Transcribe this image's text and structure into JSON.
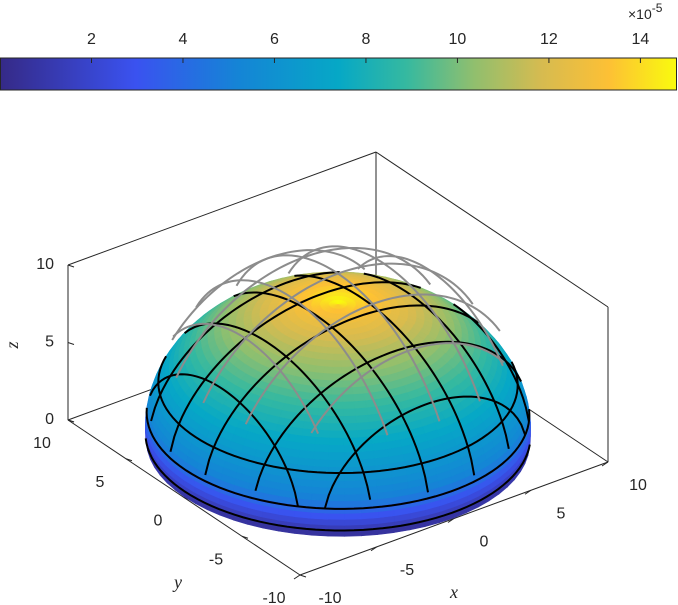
{
  "chart_data": {
    "type": "surface3d",
    "xlabel": "x",
    "ylabel": "y",
    "zlabel": "z",
    "xlim": [
      -10,
      10
    ],
    "ylim": [
      -10,
      10
    ],
    "zlim": [
      0,
      10
    ],
    "xticks": [
      -10,
      -5,
      0,
      5,
      10
    ],
    "yticks": [
      -10,
      -5,
      0,
      5,
      10
    ],
    "zticks": [
      0,
      5,
      10
    ],
    "colorbar": {
      "clim": [
        0,
        14.8
      ],
      "ticks": [
        2,
        4,
        6,
        8,
        10,
        12,
        14
      ],
      "multiplier": "×10",
      "exponent": "-5"
    }
  }
}
